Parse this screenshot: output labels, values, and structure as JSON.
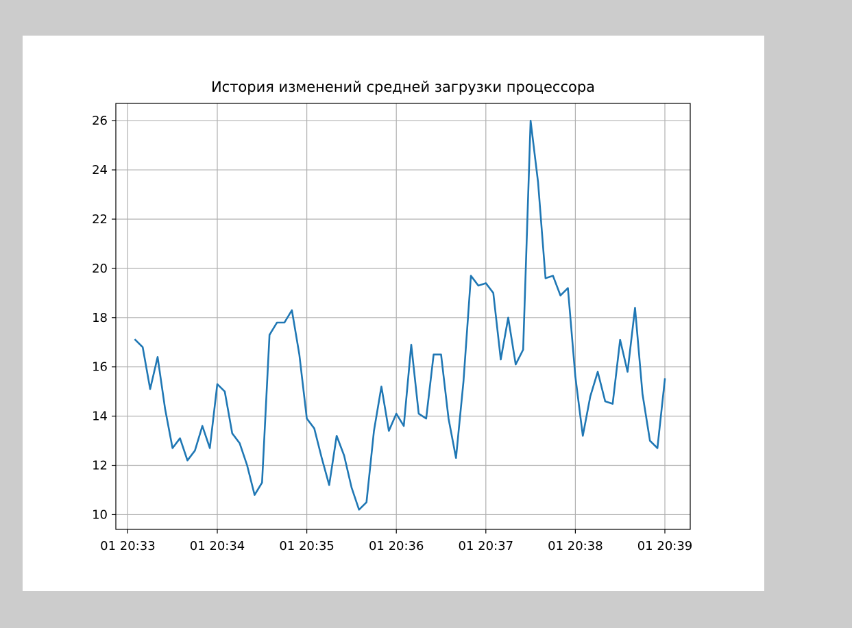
{
  "chart_data": {
    "type": "line",
    "title": "История изменений средней загрузки процессора",
    "xlabel": "",
    "ylabel": "",
    "grid": true,
    "legend": "none",
    "x_axis": {
      "kind": "time",
      "start": "20:33:05",
      "step_seconds": 5,
      "range": [
        "20:32:52",
        "20:39:17"
      ],
      "ticks": [
        "20:33:00",
        "20:34:00",
        "20:35:00",
        "20:36:00",
        "20:37:00",
        "20:38:00",
        "20:39:00"
      ],
      "tick_labels": [
        "01 20:33",
        "01 20:34",
        "01 20:35",
        "01 20:36",
        "01 20:37",
        "01 20:38",
        "01 20:39"
      ]
    },
    "y_axis": {
      "range": [
        9.4,
        26.7
      ],
      "ticks": [
        10,
        12,
        14,
        16,
        18,
        20,
        22,
        24,
        26
      ],
      "tick_labels": [
        "10",
        "12",
        "14",
        "16",
        "18",
        "20",
        "22",
        "24",
        "26"
      ]
    },
    "series": [
      {
        "color": "#1f77b4",
        "values": [
          17.1,
          16.8,
          15.1,
          16.4,
          14.3,
          12.7,
          13.1,
          12.2,
          12.6,
          13.6,
          12.7,
          15.3,
          15.0,
          13.3,
          12.9,
          12.0,
          10.8,
          11.3,
          17.3,
          17.8,
          17.8,
          18.3,
          16.5,
          13.9,
          13.5,
          12.3,
          11.2,
          13.2,
          12.4,
          11.1,
          10.2,
          10.5,
          13.4,
          15.2,
          13.4,
          14.1,
          13.6,
          16.9,
          14.1,
          13.9,
          16.5,
          16.5,
          13.9,
          12.3,
          15.4,
          19.7,
          19.3,
          19.4,
          19.0,
          16.3,
          18.0,
          16.1,
          16.7,
          26.0,
          23.5,
          19.6,
          19.7,
          18.9,
          19.2,
          15.6,
          13.2,
          14.8,
          15.8,
          14.6,
          14.5,
          17.1,
          15.8,
          18.4,
          14.9,
          13.0,
          12.7,
          15.5
        ]
      }
    ]
  }
}
